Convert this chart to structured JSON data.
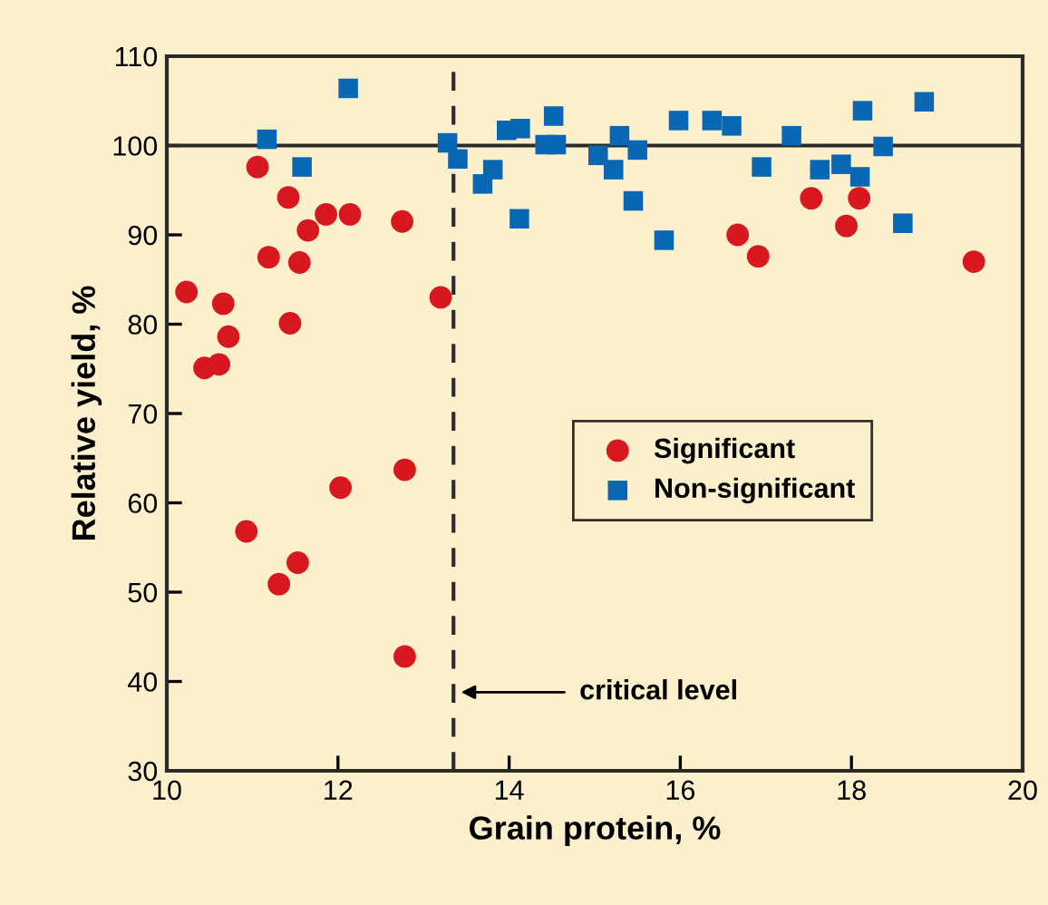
{
  "chart_data": {
    "type": "scatter",
    "xlabel": "Grain protein, %",
    "ylabel": "Relative yield, %",
    "xlim": [
      10,
      20
    ],
    "xticks": [
      10,
      12,
      14,
      16,
      18,
      20
    ],
    "ylim": [
      30,
      110
    ],
    "yticks": [
      30,
      40,
      50,
      60,
      70,
      80,
      90,
      100,
      110
    ],
    "grid": false,
    "legend": "right",
    "series": [
      {
        "name": "Significant",
        "color": "#d7191f",
        "marker": "circle",
        "x": [
          10.23,
          10.44,
          10.61,
          10.66,
          10.72,
          10.93,
          11.06,
          11.19,
          11.31,
          11.42,
          11.44,
          11.53,
          11.55,
          11.65,
          11.86,
          12.03,
          12.14,
          12.75,
          12.78,
          12.78,
          13.2,
          16.67,
          16.91,
          17.53,
          18.09,
          17.94,
          19.43
        ],
        "values": [
          83.6,
          75.1,
          75.5,
          82.3,
          78.6,
          56.8,
          97.6,
          87.5,
          50.9,
          94.2,
          80.1,
          53.3,
          86.9,
          90.5,
          92.3,
          61.7,
          92.3,
          91.5,
          63.7,
          42.8,
          83.0,
          90.0,
          87.6,
          94.1,
          94.1,
          91.0,
          87.0
        ]
      },
      {
        "name": "Non-significant",
        "color": "#0a67b4",
        "marker": "square",
        "x": [
          11.17,
          12.12,
          11.58,
          13.28,
          13.4,
          13.69,
          13.81,
          13.97,
          14.13,
          14.12,
          14.52,
          14.42,
          14.55,
          15.04,
          15.22,
          15.29,
          15.5,
          15.45,
          15.81,
          15.98,
          16.37,
          16.6,
          16.95,
          17.3,
          17.63,
          17.88,
          18.1,
          18.13,
          18.37,
          18.6,
          18.85
        ],
        "values": [
          100.7,
          106.4,
          97.6,
          100.3,
          98.5,
          95.7,
          97.3,
          101.7,
          101.9,
          91.8,
          103.3,
          100.1,
          100.1,
          98.9,
          97.3,
          101.1,
          99.5,
          93.8,
          89.4,
          102.8,
          102.8,
          102.2,
          97.6,
          101.1,
          97.3,
          97.9,
          96.5,
          103.9,
          99.9,
          91.3,
          104.9
        ]
      }
    ],
    "ref_lines": [
      {
        "axis": "y",
        "value": 100,
        "line_style": "solid",
        "color": "#2b2b2b"
      },
      {
        "axis": "x",
        "value": 13.35,
        "line_style": "dashed",
        "color": "#2b2b2b",
        "label": "critical level"
      }
    ]
  }
}
